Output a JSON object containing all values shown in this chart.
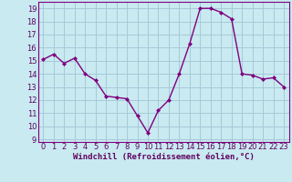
{
  "x": [
    0,
    1,
    2,
    3,
    4,
    5,
    6,
    7,
    8,
    9,
    10,
    11,
    12,
    13,
    14,
    15,
    16,
    17,
    18,
    19,
    20,
    21,
    22,
    23
  ],
  "y": [
    15.1,
    15.5,
    14.8,
    15.2,
    14.0,
    13.5,
    12.3,
    12.2,
    12.1,
    10.8,
    9.5,
    11.2,
    12.0,
    14.0,
    16.3,
    19.0,
    19.0,
    18.7,
    18.2,
    14.0,
    13.9,
    13.6,
    13.7,
    13.0
  ],
  "line_color": "#800080",
  "marker": "D",
  "marker_size": 2,
  "line_width": 1.0,
  "xlabel": "Windchill (Refroidissement éolien,°C)",
  "xlabel_fontsize": 6.5,
  "background_color": "#c8eaf0",
  "grid_color": "#a8c8d8",
  "xlim": [
    -0.5,
    23.5
  ],
  "ylim": [
    8.8,
    19.5
  ],
  "yticks": [
    9,
    10,
    11,
    12,
    13,
    14,
    15,
    16,
    17,
    18,
    19
  ],
  "xticks": [
    0,
    1,
    2,
    3,
    4,
    5,
    6,
    7,
    8,
    9,
    10,
    11,
    12,
    13,
    14,
    15,
    16,
    17,
    18,
    19,
    20,
    21,
    22,
    23
  ],
  "tick_fontsize": 6.0,
  "tick_color": "#600060",
  "label_color": "#600060",
  "spine_color": "#800080"
}
